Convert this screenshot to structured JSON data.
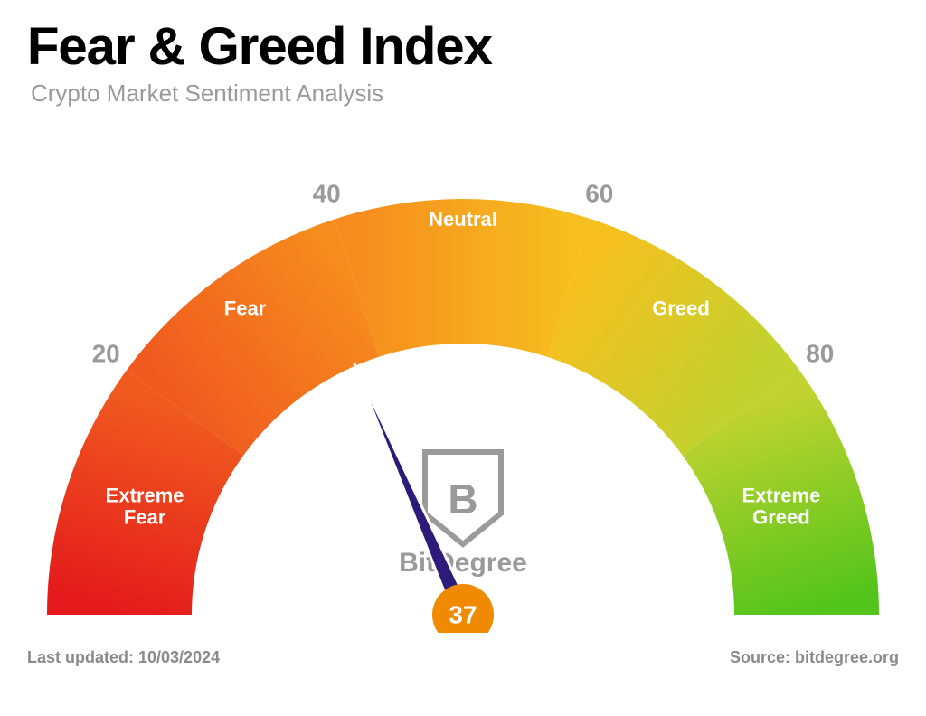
{
  "header": {
    "title": "Fear & Greed Index",
    "subtitle": "Crypto Market Sentiment Analysis"
  },
  "gauge": {
    "type": "gauge",
    "value": 37,
    "min": 0,
    "max": 100,
    "needle_color": "#2e1a78",
    "needle_outline": "#ffffff",
    "hub_color": "#f08a00",
    "value_font_color": "#ffffff",
    "value_font_size": 28,
    "segments": [
      {
        "from": 0,
        "to": 20,
        "label": "Extreme\nFear",
        "color_start": "#e41a1c",
        "color_end": "#f05a1f"
      },
      {
        "from": 20,
        "to": 40,
        "label": "Fear",
        "color_start": "#f05a1f",
        "color_end": "#f68c1e"
      },
      {
        "from": 40,
        "to": 60,
        "label": "Neutral",
        "color_start": "#f68c1e",
        "color_end": "#f6bf1e"
      },
      {
        "from": 60,
        "to": 80,
        "label": "Greed",
        "color_start": "#f6bf1e",
        "color_end": "#c0d330"
      },
      {
        "from": 80,
        "to": 100,
        "label": "Extreme\nGreed",
        "color_start": "#c0d330",
        "color_end": "#52c41a"
      }
    ],
    "segment_label_color": "#ffffff",
    "segment_label_fontsize": 22,
    "segment_label_fontweight": "700",
    "ticks": [
      20,
      40,
      60,
      80
    ],
    "tick_color": "#9a9a9a",
    "tick_fontsize": 28,
    "inner_radius": 300,
    "outer_radius": 460,
    "center_brand": "BitDegree",
    "brand_color": "#9a9a9a",
    "brand_fontsize": 30
  },
  "footer": {
    "last_updated_label": "Last updated: ",
    "last_updated_value": "10/03/2024",
    "source_label": "Source: ",
    "source_value": "bitdegree.org"
  },
  "palette": {
    "background": "#ffffff",
    "text_muted": "#9a9a9a",
    "text_strong": "#000000"
  }
}
